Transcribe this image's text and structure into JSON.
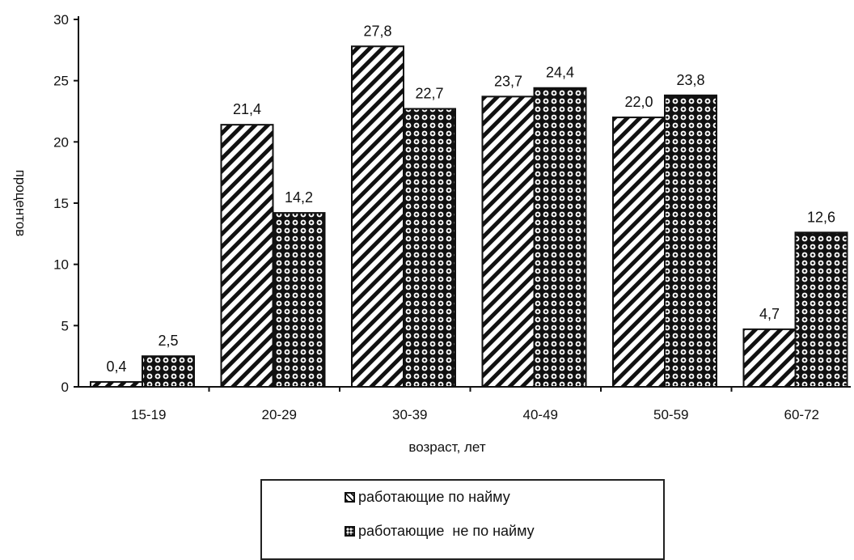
{
  "chart_data": {
    "type": "bar",
    "categories": [
      "15-19",
      "20-29",
      "30-39",
      "40-49",
      "50-59",
      "60-72"
    ],
    "series": [
      {
        "name": "работающие по найму",
        "values": [
          0.4,
          21.4,
          27.8,
          23.7,
          22.0,
          4.7
        ],
        "labels": [
          "0,4",
          "21,4",
          "27,8",
          "23,7",
          "22,0",
          "4,7"
        ],
        "pattern": "diagonal-hatch"
      },
      {
        "name": "работающие  не по найму",
        "values": [
          2.5,
          14.2,
          22.7,
          24.4,
          23.8,
          12.6
        ],
        "labels": [
          "2,5",
          "14,2",
          "22,7",
          "24,4",
          "23,8",
          "12,6"
        ],
        "pattern": "dotted-circles"
      }
    ],
    "xlabel": "возраст, лет",
    "ylabel": "процентов",
    "ylim": [
      0,
      30
    ],
    "yticks": [
      "0",
      "5",
      "10",
      "15",
      "20",
      "25",
      "30"
    ],
    "grid": false,
    "legend_position": "bottom"
  }
}
